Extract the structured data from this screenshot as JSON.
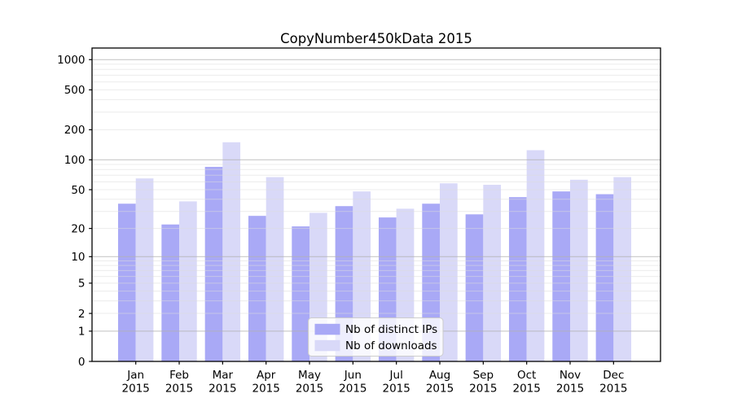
{
  "chart_data": {
    "type": "bar",
    "title": "CopyNumber450kData 2015",
    "months": [
      "Jan",
      "Feb",
      "Mar",
      "Apr",
      "May",
      "Jun",
      "Jul",
      "Aug",
      "Sep",
      "Oct",
      "Nov",
      "Dec"
    ],
    "year": "2015",
    "series": [
      {
        "name": "Nb of distinct IPs",
        "color": "#a9a9f6",
        "values": [
          36,
          22,
          85,
          27,
          21,
          34,
          26,
          36,
          28,
          42,
          48,
          45
        ]
      },
      {
        "name": "Nb of downloads",
        "color": "#d9d9f8",
        "values": [
          65,
          38,
          150,
          67,
          29,
          48,
          32,
          58,
          56,
          125,
          63,
          67
        ]
      }
    ],
    "y_ticks": [
      0,
      1,
      2,
      5,
      10,
      20,
      50,
      100,
      200,
      500,
      1000
    ],
    "y_scale": "log1p",
    "ylim": [
      0,
      1305
    ],
    "xlabel": "",
    "ylabel": "",
    "grid": true,
    "legend": {
      "position": "inside-lower-center"
    },
    "colors": {
      "major_grid": "#b0b0b0",
      "minor_grid": "#dcdcdc",
      "axis": "#000000",
      "text": "#000000",
      "legend_bg": "#ffffff",
      "legend_border": "#cccccc",
      "background": "#ffffff"
    }
  }
}
